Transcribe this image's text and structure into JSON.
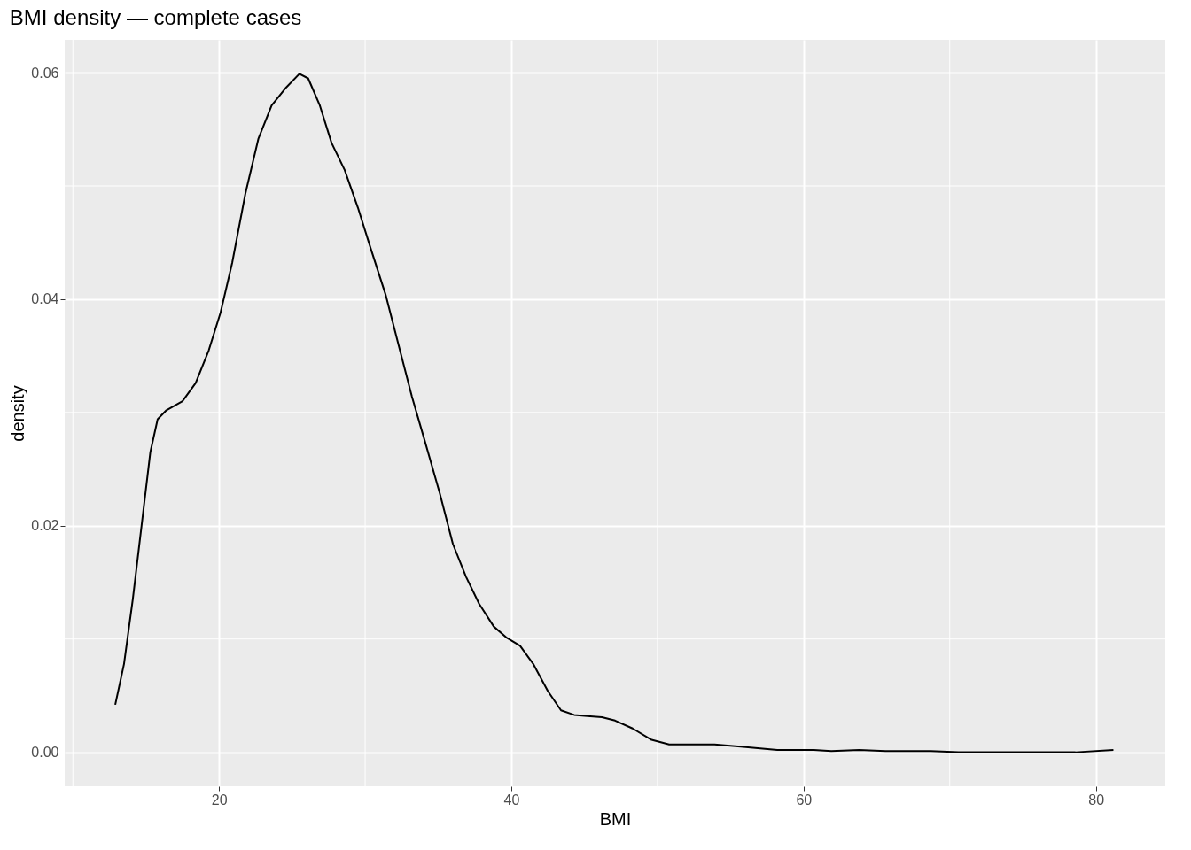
{
  "chart_data": {
    "type": "line",
    "title": "BMI density — complete cases",
    "xlabel": "BMI",
    "ylabel": "density",
    "x": [
      12.9,
      13.5,
      14.1,
      14.7,
      15.3,
      15.8,
      16.4,
      17.5,
      18.4,
      19.3,
      20.1,
      20.9,
      21.8,
      22.7,
      23.6,
      24.6,
      25.5,
      26.1,
      26.9,
      27.7,
      28.6,
      29.5,
      30.4,
      31.4,
      32.3,
      33.2,
      34.1,
      35.1,
      36.0,
      36.9,
      37.8,
      38.8,
      39.7,
      40.6,
      41.5,
      42.5,
      43.4,
      44.3,
      45.2,
      46.2,
      47.1,
      48.3,
      49.6,
      50.8,
      52.0,
      53.9,
      55.7,
      58.2,
      60.7,
      61.9,
      63.8,
      65.6,
      68.7,
      70.6,
      73.6,
      78.6,
      81.2
    ],
    "series": [
      {
        "color": "#000000",
        "values": [
          0.0042,
          0.0078,
          0.0135,
          0.02,
          0.0265,
          0.0294,
          0.0302,
          0.031,
          0.0326,
          0.0355,
          0.0388,
          0.0432,
          0.0493,
          0.0542,
          0.0571,
          0.0587,
          0.0599,
          0.0595,
          0.0571,
          0.0538,
          0.0514,
          0.0481,
          0.0444,
          0.0404,
          0.0359,
          0.0314,
          0.0274,
          0.0229,
          0.0184,
          0.0155,
          0.0131,
          0.0111,
          0.0101,
          0.0094,
          0.0078,
          0.0054,
          0.0037,
          0.0033,
          0.0032,
          0.0031,
          0.0028,
          0.0021,
          0.0011,
          0.0007,
          0.0007,
          0.0007,
          0.0005,
          0.0002,
          0.0002,
          0.0001,
          0.0002,
          0.0001,
          0.0001,
          0,
          0,
          0,
          0.0002
        ]
      }
    ],
    "xlim": [
      9.44,
      84.75
    ],
    "ylim": [
      -0.003,
      0.0629
    ],
    "xticks": [
      20,
      40,
      60,
      80
    ],
    "yticks": [
      {
        "value": 0,
        "label": "0.00"
      },
      {
        "value": 0.02,
        "label": "0.02"
      },
      {
        "value": 0.04,
        "label": "0.04"
      },
      {
        "value": 0.06,
        "label": "0.06"
      }
    ],
    "grid": true,
    "legend": false,
    "marker": "none",
    "line_style": "solid"
  }
}
